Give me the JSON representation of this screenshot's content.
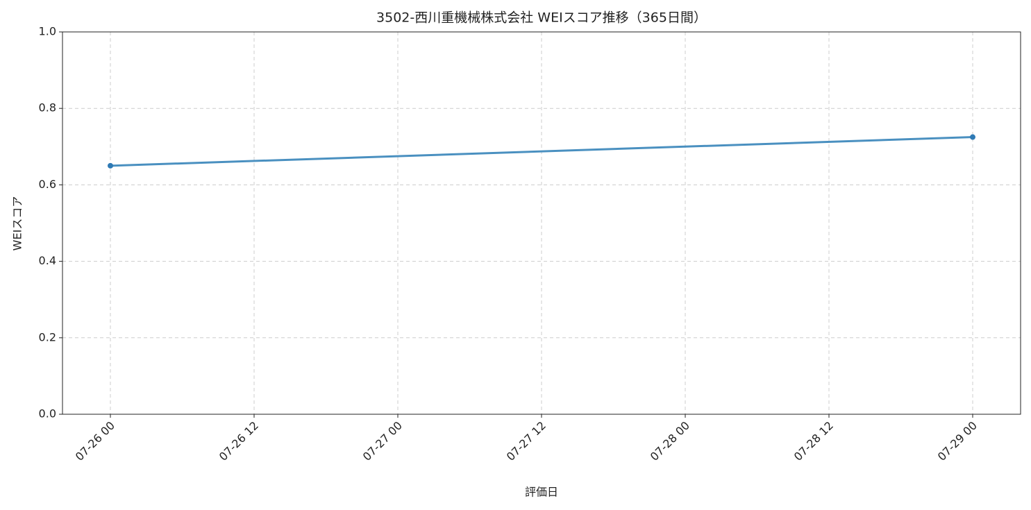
{
  "chart_data": {
    "type": "line",
    "title": "3502-西川重機械株式会社 WEIスコア推移（365日間）",
    "x_label": "評価日",
    "y_label": "WEIスコア",
    "x": [
      "07-26 00",
      "07-29 00"
    ],
    "series": [
      {
        "name": "WEIスコア",
        "color": "#4a90c0",
        "marker_color": "#2f7ab5",
        "values": [
          0.65,
          0.725
        ]
      }
    ],
    "xlim": [
      "07-25 20",
      "07-29 04"
    ],
    "xticks": [
      "07-26 00",
      "07-26 12",
      "07-27 00",
      "07-27 12",
      "07-28 00",
      "07-28 12",
      "07-29 00"
    ],
    "ylim": [
      0,
      1
    ],
    "yticks": [
      {
        "value": 0,
        "label": "0.0"
      },
      0.2,
      0.4,
      0.6,
      0.8,
      {
        "value": 1,
        "label": "1.0"
      }
    ],
    "grid": true
  }
}
